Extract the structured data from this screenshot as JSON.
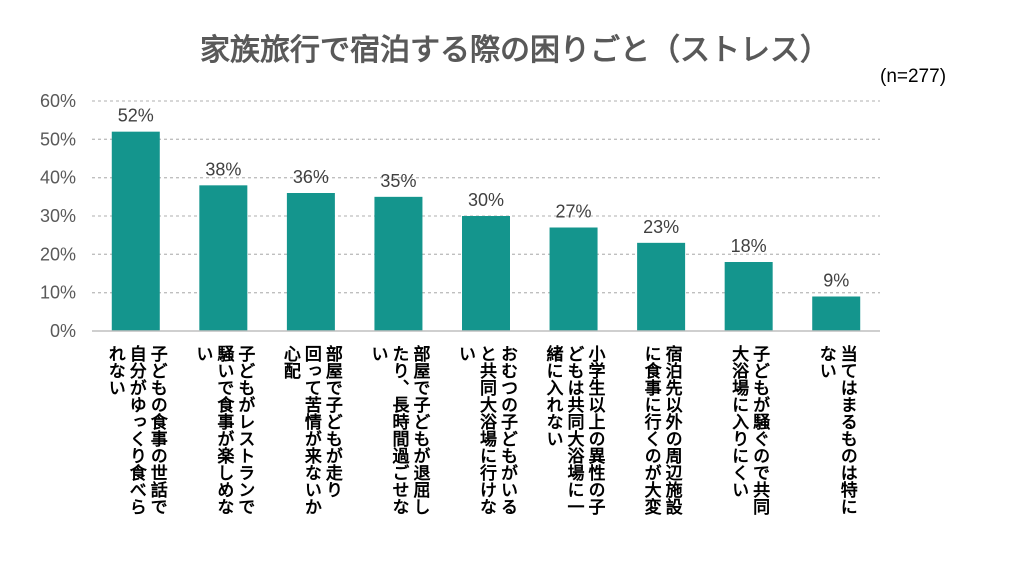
{
  "chart_data": {
    "type": "bar",
    "title": "家族旅行で宿泊する際の困りごと（ストレス）",
    "note": "(n=277)",
    "categories": [
      "子どもの食事の世話で自分がゆっくり食べられない",
      "子どもがレストランで騒いで食事が楽しめない",
      "部屋で子どもが走り回って苦情が来ないか心配",
      "部屋で子どもが退屈したり、長時間過ごせない",
      "おむつの子どもがいると共同大浴場に行けない",
      "小学生以上の異性の子どもは共同大浴場に一緒に入れない",
      "宿泊先以外の周辺施設に食事に行くのが大変",
      "子どもが騒ぐので共同大浴場に入りにくい",
      "当てはまるものは特にない"
    ],
    "category_columns": [
      [
        "子どもの食事の世話で",
        "自分がゆっくり食べら",
        "れない"
      ],
      [
        "子どもがレストランで",
        "騒いで食事が楽しめな",
        "い"
      ],
      [
        "部屋で子どもが走り",
        "回って苦情が来ないか",
        "心配"
      ],
      [
        "部屋で子どもが退屈し",
        "たり、長時間過ごせな",
        "い"
      ],
      [
        "おむつの子どもがいる",
        "と共同大浴場に行けな",
        "い"
      ],
      [
        "小学生以上の異性の子",
        "どもは共同大浴場に一",
        "緒に入れない"
      ],
      [
        "宿泊先以外の周辺施設",
        "に食事に行くのが大変"
      ],
      [
        "子どもが騒ぐので共同",
        "大浴場に入りにくい"
      ],
      [
        "当てはまるものは特に",
        "ない"
      ]
    ],
    "values": [
      52,
      38,
      36,
      35,
      30,
      27,
      23,
      18,
      9
    ],
    "data_labels": [
      "52%",
      "38%",
      "36%",
      "35%",
      "30%",
      "27%",
      "23%",
      "18%",
      "9%"
    ],
    "y_ticks": [
      "0%",
      "10%",
      "20%",
      "30%",
      "40%",
      "50%",
      "60%"
    ],
    "ylim": [
      0,
      60
    ],
    "y_step": 10,
    "grid": true,
    "bar_color": "#14958d",
    "grid_color": "#bfbfbf"
  }
}
